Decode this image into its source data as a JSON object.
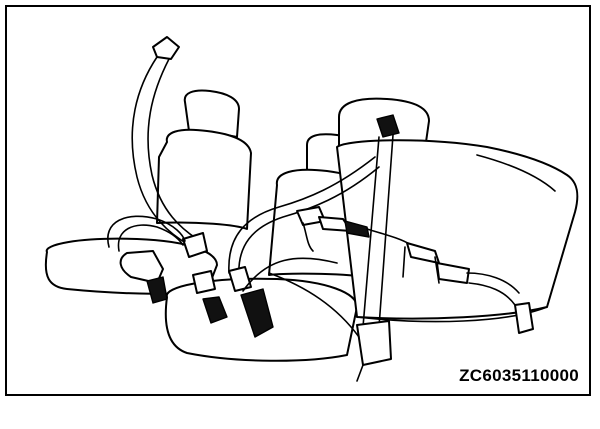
{
  "figure": {
    "code": "ZC6035110000"
  }
}
